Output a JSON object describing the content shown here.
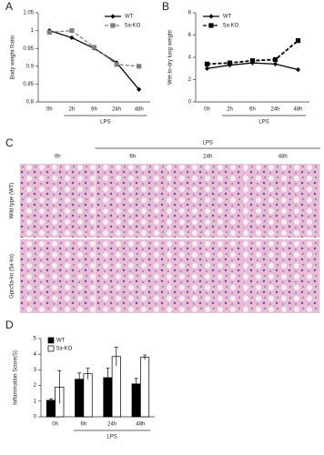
{
  "chart_data": [
    {
      "type": "line",
      "panel": "A",
      "ylabel": "Body weight Ratio",
      "categories": [
        "0h",
        "2h",
        "6h",
        "24h",
        "48h"
      ],
      "group_label": "LPS",
      "series": [
        {
          "name": "WT",
          "color": "#000000",
          "marker": "diamond",
          "dashed": false,
          "values": [
            1,
            0.98,
            0.95,
            0.91,
            0.835
          ]
        },
        {
          "name": "5a-KO",
          "color": "#808080",
          "marker": "square",
          "dashed": true,
          "values": [
            0.995,
            1,
            0.953,
            0.905,
            0.9
          ]
        }
      ],
      "ylim": [
        0.8,
        1.05
      ],
      "yticks": [
        0.8,
        0.85,
        0.9,
        0.95,
        1,
        1.05
      ],
      "legend": "upper right"
    },
    {
      "type": "line",
      "panel": "B",
      "ylabel": "Wet-to-dry lung weight",
      "categories": [
        "0h",
        "2h",
        "6h",
        "24h",
        "48h"
      ],
      "group_label": "LPS",
      "series": [
        {
          "name": "WT",
          "color": "#000000",
          "marker": "diamond",
          "dashed": false,
          "values": [
            3.0,
            3.3,
            3.5,
            3.4,
            2.9
          ]
        },
        {
          "name": "5a-KO",
          "color": "#000000",
          "marker": "square",
          "dashed": true,
          "values": [
            3.4,
            3.5,
            3.7,
            3.8,
            5.5
          ]
        }
      ],
      "ylim": [
        0,
        8
      ],
      "yticks": [
        0,
        2,
        4,
        6,
        8
      ],
      "legend": "upper left"
    },
    {
      "type": "bar",
      "panel": "D",
      "ylabel": "Inflammation Score(S)",
      "categories": [
        "0h",
        "6h",
        "24h",
        "48h"
      ],
      "group_label": "LPS",
      "series": [
        {
          "name": "WT",
          "color": "#000000",
          "values": [
            1.05,
            2.4,
            2.5,
            2.1
          ],
          "errors": [
            0.1,
            0.4,
            0.6,
            0.35
          ]
        },
        {
          "name": "5a-KO",
          "color": "#ffffff",
          "values": [
            1.9,
            2.75,
            3.85,
            3.8
          ],
          "errors": [
            1.05,
            0.35,
            0.6,
            0.15
          ]
        }
      ],
      "ylim": [
        0,
        5
      ],
      "yticks": [
        0,
        1,
        2,
        3,
        4,
        5
      ],
      "legend": "upper left"
    }
  ],
  "histology": {
    "panel": "C",
    "group_label": "LPS",
    "columns": [
      "0h",
      "6h",
      "24h",
      "48h"
    ],
    "rows": [
      "Wild type (WT)",
      "Gprc5a-ko (5a-ko)"
    ]
  }
}
